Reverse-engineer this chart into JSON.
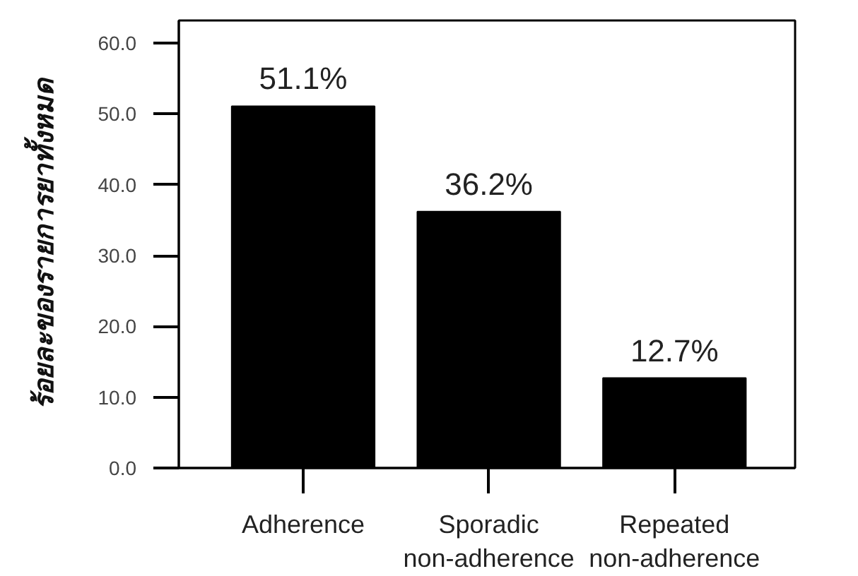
{
  "chart_data": {
    "type": "bar",
    "ylabel": "ร้อยละของรายการยาทั้งหมด",
    "categories": [
      "Adherence",
      "Sporadic\nnon-adherence",
      "Repeated\nnon-adherence"
    ],
    "values": [
      51.1,
      36.2,
      12.7
    ],
    "value_labels": [
      "51.1%",
      "36.2%",
      "12.7%"
    ],
    "color": "#000000",
    "ylim": [
      0,
      63.2
    ],
    "yticks": [
      {
        "value": 0,
        "label": "0.0"
      },
      {
        "value": 10,
        "label": "10.0"
      },
      {
        "value": 20,
        "label": "20.0"
      },
      {
        "value": 30,
        "label": "30.0"
      },
      {
        "value": 40,
        "label": "40.0"
      },
      {
        "value": 50,
        "label": "50.0"
      },
      {
        "value": 60,
        "label": "60.0"
      }
    ],
    "grid": false
  }
}
